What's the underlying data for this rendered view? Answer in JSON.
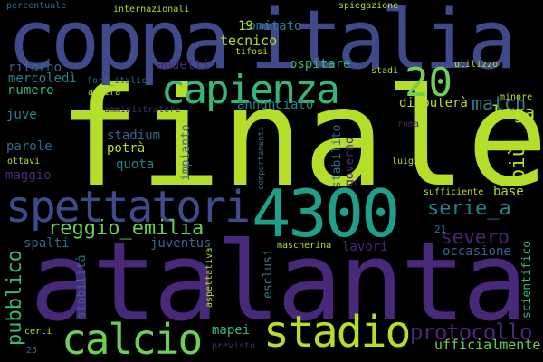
{
  "words": [
    {
      "text": "finale",
      "color": "#b5de2b",
      "vertical": false
    },
    {
      "text": "atalanta",
      "color": "#482878",
      "vertical": false
    },
    {
      "text": "coppa",
      "color": "#3e4a89",
      "vertical": false
    },
    {
      "text": "italia",
      "color": "#3e4a89",
      "vertical": false
    },
    {
      "text": "capienza",
      "color": "#35b779",
      "vertical": false
    },
    {
      "text": "20",
      "color": "#6ece58",
      "vertical": false
    },
    {
      "text": "4300",
      "color": "#1f9e89",
      "vertical": false
    },
    {
      "text": "spettatori",
      "color": "#3e4a89",
      "vertical": false
    },
    {
      "text": "stadio",
      "color": "#b5de2b",
      "vertical": false
    },
    {
      "text": "calcio",
      "color": "#6ece58",
      "vertical": false
    },
    {
      "text": "protocollo",
      "color": "#482878",
      "vertical": false
    },
    {
      "text": "reggio_emilia",
      "color": "#6ece58",
      "vertical": false
    },
    {
      "text": "serie_a",
      "color": "#26828e",
      "vertical": false
    },
    {
      "text": "severo",
      "color": "#482878",
      "vertical": false
    },
    {
      "text": "match",
      "color": "#26828e",
      "vertical": false
    },
    {
      "text": "lega",
      "color": "#b5de2b",
      "vertical": false
    },
    {
      "text": "più",
      "color": "#b5de2b",
      "vertical": true
    },
    {
      "text": "pubblico",
      "color": "#35b779",
      "vertical": true
    },
    {
      "text": "ufficialmente",
      "color": "#6ece58",
      "vertical": false
    },
    {
      "text": "tecnico",
      "color": "#b5de2b",
      "vertical": false
    },
    {
      "text": "comitato",
      "color": "#26828e",
      "vertical": false
    },
    {
      "text": "19",
      "color": "#b5de2b",
      "vertical": false
    },
    {
      "text": "ospitare",
      "color": "#35b779",
      "vertical": false
    },
    {
      "text": "addetti",
      "color": "#482878",
      "vertical": false
    },
    {
      "text": "ritorno",
      "color": "#31688e",
      "vertical": false
    },
    {
      "text": "mercoledì",
      "color": "#26828e",
      "vertical": false
    },
    {
      "text": "numero",
      "color": "#35b779",
      "vertical": false
    },
    {
      "text": "juve",
      "color": "#26828e",
      "vertical": false
    },
    {
      "text": "annunciato",
      "color": "#26828e",
      "vertical": false
    },
    {
      "text": "disputerà",
      "color": "#b5de2b",
      "vertical": false
    },
    {
      "text": "stadium",
      "color": "#31688e",
      "vertical": false
    },
    {
      "text": "parole",
      "color": "#31688e",
      "vertical": false
    },
    {
      "text": "potrà",
      "color": "#b5de2b",
      "vertical": false
    },
    {
      "text": "quota",
      "color": "#26828e",
      "vertical": false
    },
    {
      "text": "maggio",
      "color": "#482878",
      "vertical": false
    },
    {
      "text": "base",
      "color": "#b5de2b",
      "vertical": false
    },
    {
      "text": "spalti",
      "color": "#31688e",
      "vertical": false
    },
    {
      "text": "juventus",
      "color": "#31688e",
      "vertical": false
    },
    {
      "text": "lavori",
      "color": "#482878",
      "vertical": false
    },
    {
      "text": "occasione",
      "color": "#31688e",
      "vertical": false
    },
    {
      "text": "21",
      "color": "#31688e",
      "vertical": false
    },
    {
      "text": "mapei",
      "color": "#35b779",
      "vertical": false
    },
    {
      "text": "impianto",
      "color": "#31688e",
      "vertical": true
    },
    {
      "text": "stabilito",
      "color": "#31688e",
      "vertical": true
    },
    {
      "text": "governo",
      "color": "#482878",
      "vertical": true
    },
    {
      "text": "esclusi",
      "color": "#26828e",
      "vertical": true
    },
    {
      "text": "stabilità",
      "color": "#31688e",
      "vertical": true
    },
    {
      "text": "scientifico",
      "color": "#35b779",
      "vertical": true
    },
    {
      "text": "percentuale",
      "color": "#31688e",
      "vertical": false
    },
    {
      "text": "internazionali",
      "color": "#b5de2b",
      "vertical": false
    },
    {
      "text": "spiegazione",
      "color": "#b5de2b",
      "vertical": false
    },
    {
      "text": "tifosi",
      "color": "#b5de2b",
      "vertical": false
    },
    {
      "text": "stadi",
      "color": "#b5de2b",
      "vertical": false
    },
    {
      "text": "utilizzo",
      "color": "#b5de2b",
      "vertical": false
    },
    {
      "text": "minore",
      "color": "#b5de2b",
      "vertical": false
    },
    {
      "text": "foro_italico",
      "color": "#31688e",
      "vertical": false
    },
    {
      "text": "aprirà",
      "color": "#b5de2b",
      "vertical": false
    },
    {
      "text": "amministratore",
      "color": "#482878",
      "vertical": false
    },
    {
      "text": "roma",
      "color": "#482878",
      "vertical": false
    },
    {
      "text": "luigi",
      "color": "#b5de2b",
      "vertical": false
    },
    {
      "text": "ottavi",
      "color": "#b5de2b",
      "vertical": false
    },
    {
      "text": "comportamenti",
      "color": "#31688e",
      "vertical": true
    },
    {
      "text": "sufficiente",
      "color": "#b5de2b",
      "vertical": false
    },
    {
      "text": "mascherina",
      "color": "#b5de2b",
      "vertical": false
    },
    {
      "text": "aspettativa",
      "color": "#b5de2b",
      "vertical": true
    },
    {
      "text": "certi",
      "color": "#b5de2b",
      "vertical": false
    },
    {
      "text": "previsto",
      "color": "#482878",
      "vertical": false
    },
    {
      "text": "25",
      "color": "#31688e",
      "vertical": false
    }
  ]
}
